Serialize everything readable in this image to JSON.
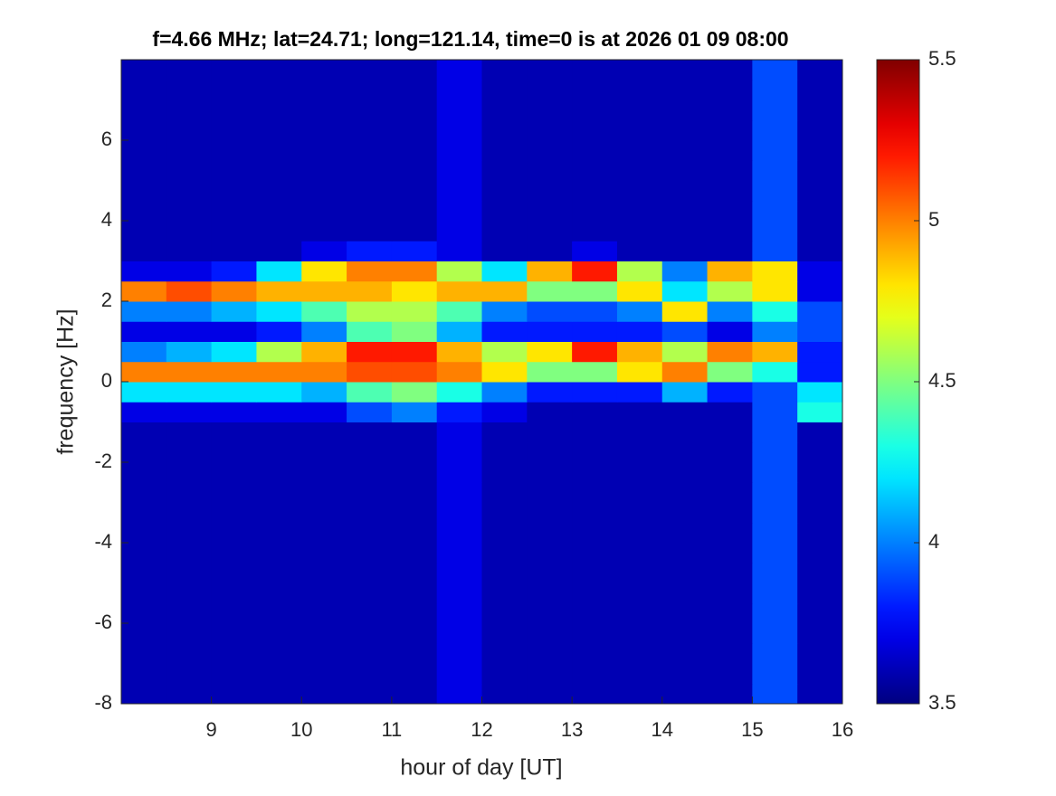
{
  "chart_data": {
    "type": "heatmap",
    "title": "f=4.66 MHz;  lat=24.71; long=121.14, time=0 is at 2026 01 09 08:00",
    "x_label": "hour of day [UT]",
    "y_label": "frequency [Hz]",
    "xlim": [
      8,
      16
    ],
    "xticks": [
      9,
      10,
      11,
      12,
      13,
      14,
      15,
      16
    ],
    "ylim": [
      -8,
      8
    ],
    "yticks": [
      -8,
      -6,
      -4,
      -2,
      0,
      2,
      4,
      6
    ],
    "colormap": "jet",
    "clim": [
      3.5,
      5.5
    ],
    "cticks": [
      3.5,
      4,
      4.5,
      5,
      5.5
    ],
    "x": [
      8.25,
      8.75,
      9.25,
      9.75,
      10.25,
      10.75,
      11.25,
      11.75,
      12.25,
      12.75,
      13.25,
      13.75,
      14.25,
      14.75,
      15.25,
      15.75
    ],
    "y": [
      -7.75,
      -7.25,
      -6.75,
      -6.25,
      -5.75,
      -5.25,
      -4.75,
      -4.25,
      -3.75,
      -3.25,
      -2.75,
      -2.25,
      -1.75,
      -1.25,
      -0.75,
      -0.25,
      0.25,
      0.75,
      1.25,
      1.75,
      2.25,
      2.75,
      3.25,
      3.75,
      4.25,
      4.75,
      5.25,
      5.75,
      6.25,
      6.75,
      7.25,
      7.75
    ],
    "z": [
      [
        3.6,
        3.6,
        3.6,
        3.6,
        3.6,
        3.6,
        3.6,
        3.7,
        3.6,
        3.6,
        3.6,
        3.6,
        3.6,
        3.6,
        3.9,
        3.6
      ],
      [
        3.6,
        3.6,
        3.6,
        3.6,
        3.6,
        3.6,
        3.6,
        3.7,
        3.6,
        3.6,
        3.6,
        3.6,
        3.6,
        3.6,
        3.9,
        3.6
      ],
      [
        3.6,
        3.6,
        3.6,
        3.6,
        3.6,
        3.6,
        3.6,
        3.7,
        3.6,
        3.6,
        3.6,
        3.6,
        3.6,
        3.6,
        3.9,
        3.6
      ],
      [
        3.6,
        3.6,
        3.6,
        3.6,
        3.6,
        3.6,
        3.6,
        3.7,
        3.6,
        3.6,
        3.6,
        3.6,
        3.6,
        3.6,
        3.9,
        3.6
      ],
      [
        3.6,
        3.6,
        3.6,
        3.6,
        3.6,
        3.6,
        3.6,
        3.7,
        3.6,
        3.6,
        3.6,
        3.6,
        3.6,
        3.6,
        3.9,
        3.6
      ],
      [
        3.6,
        3.6,
        3.6,
        3.6,
        3.6,
        3.6,
        3.6,
        3.7,
        3.6,
        3.6,
        3.6,
        3.6,
        3.6,
        3.6,
        3.9,
        3.6
      ],
      [
        3.6,
        3.6,
        3.6,
        3.6,
        3.6,
        3.6,
        3.6,
        3.7,
        3.6,
        3.6,
        3.6,
        3.6,
        3.6,
        3.6,
        3.9,
        3.6
      ],
      [
        3.6,
        3.6,
        3.6,
        3.6,
        3.6,
        3.6,
        3.6,
        3.7,
        3.6,
        3.6,
        3.6,
        3.6,
        3.6,
        3.6,
        3.9,
        3.6
      ],
      [
        3.6,
        3.6,
        3.6,
        3.6,
        3.6,
        3.6,
        3.6,
        3.7,
        3.6,
        3.6,
        3.6,
        3.6,
        3.6,
        3.6,
        3.9,
        3.6
      ],
      [
        3.6,
        3.6,
        3.6,
        3.6,
        3.6,
        3.6,
        3.6,
        3.7,
        3.6,
        3.6,
        3.6,
        3.6,
        3.6,
        3.6,
        3.9,
        3.6
      ],
      [
        3.6,
        3.6,
        3.6,
        3.6,
        3.6,
        3.6,
        3.6,
        3.7,
        3.6,
        3.6,
        3.6,
        3.6,
        3.6,
        3.6,
        3.9,
        3.6
      ],
      [
        3.6,
        3.6,
        3.6,
        3.6,
        3.6,
        3.6,
        3.6,
        3.7,
        3.6,
        3.6,
        3.6,
        3.6,
        3.6,
        3.6,
        3.9,
        3.6
      ],
      [
        3.6,
        3.6,
        3.6,
        3.6,
        3.6,
        3.6,
        3.6,
        3.7,
        3.6,
        3.6,
        3.6,
        3.6,
        3.6,
        3.6,
        3.9,
        3.6
      ],
      [
        3.6,
        3.6,
        3.6,
        3.6,
        3.6,
        3.6,
        3.6,
        3.7,
        3.6,
        3.6,
        3.6,
        3.6,
        3.6,
        3.6,
        3.9,
        3.6
      ],
      [
        3.7,
        3.7,
        3.7,
        3.7,
        3.7,
        3.9,
        4.0,
        3.8,
        3.7,
        3.6,
        3.6,
        3.6,
        3.6,
        3.6,
        3.9,
        4.3
      ],
      [
        4.2,
        4.2,
        4.2,
        4.2,
        4.1,
        4.4,
        4.5,
        4.3,
        4.0,
        3.8,
        3.8,
        3.8,
        4.1,
        3.8,
        3.9,
        4.2
      ],
      [
        5.0,
        5.0,
        5.0,
        5.0,
        5.0,
        5.1,
        5.1,
        5.0,
        4.8,
        4.5,
        4.5,
        4.8,
        5.0,
        4.5,
        4.3,
        3.8
      ],
      [
        4.0,
        4.1,
        4.2,
        4.6,
        4.9,
        5.2,
        5.2,
        4.9,
        4.6,
        4.8,
        5.2,
        4.9,
        4.6,
        5.0,
        4.9,
        3.8
      ],
      [
        3.7,
        3.7,
        3.7,
        3.8,
        4.0,
        4.4,
        4.5,
        4.1,
        3.8,
        3.8,
        3.8,
        3.8,
        3.9,
        3.7,
        4.0,
        3.9
      ],
      [
        4.0,
        4.0,
        4.1,
        4.2,
        4.4,
        4.6,
        4.6,
        4.4,
        4.0,
        3.9,
        3.9,
        4.0,
        4.8,
        4.0,
        4.3,
        3.9
      ],
      [
        5.0,
        5.1,
        5.0,
        4.9,
        4.9,
        4.9,
        4.8,
        4.9,
        4.9,
        4.5,
        4.5,
        4.8,
        4.2,
        4.6,
        4.8,
        3.7
      ],
      [
        3.7,
        3.7,
        3.8,
        4.2,
        4.8,
        5.0,
        5.0,
        4.6,
        4.2,
        4.9,
        5.2,
        4.6,
        4.0,
        4.9,
        4.8,
        3.7
      ],
      [
        3.6,
        3.6,
        3.6,
        3.6,
        3.7,
        3.8,
        3.8,
        3.7,
        3.6,
        3.6,
        3.7,
        3.6,
        3.6,
        3.6,
        3.9,
        3.6
      ],
      [
        3.6,
        3.6,
        3.6,
        3.6,
        3.6,
        3.6,
        3.6,
        3.7,
        3.6,
        3.6,
        3.6,
        3.6,
        3.6,
        3.6,
        3.9,
        3.6
      ],
      [
        3.6,
        3.6,
        3.6,
        3.6,
        3.6,
        3.6,
        3.6,
        3.7,
        3.6,
        3.6,
        3.6,
        3.6,
        3.6,
        3.6,
        3.9,
        3.6
      ],
      [
        3.6,
        3.6,
        3.6,
        3.6,
        3.6,
        3.6,
        3.6,
        3.7,
        3.6,
        3.6,
        3.6,
        3.6,
        3.6,
        3.6,
        3.9,
        3.6
      ],
      [
        3.6,
        3.6,
        3.6,
        3.6,
        3.6,
        3.6,
        3.6,
        3.7,
        3.6,
        3.6,
        3.6,
        3.6,
        3.6,
        3.6,
        3.9,
        3.6
      ],
      [
        3.6,
        3.6,
        3.6,
        3.6,
        3.6,
        3.6,
        3.6,
        3.7,
        3.6,
        3.6,
        3.6,
        3.6,
        3.6,
        3.6,
        3.9,
        3.6
      ],
      [
        3.6,
        3.6,
        3.6,
        3.6,
        3.6,
        3.6,
        3.6,
        3.7,
        3.6,
        3.6,
        3.6,
        3.6,
        3.6,
        3.6,
        3.9,
        3.6
      ],
      [
        3.6,
        3.6,
        3.6,
        3.6,
        3.6,
        3.6,
        3.6,
        3.7,
        3.6,
        3.6,
        3.6,
        3.6,
        3.6,
        3.6,
        3.9,
        3.6
      ],
      [
        3.6,
        3.6,
        3.6,
        3.6,
        3.6,
        3.6,
        3.6,
        3.7,
        3.6,
        3.6,
        3.6,
        3.6,
        3.6,
        3.6,
        3.9,
        3.6
      ],
      [
        3.6,
        3.6,
        3.6,
        3.6,
        3.6,
        3.6,
        3.6,
        3.7,
        3.6,
        3.6,
        3.6,
        3.6,
        3.6,
        3.6,
        3.9,
        3.6
      ]
    ]
  }
}
